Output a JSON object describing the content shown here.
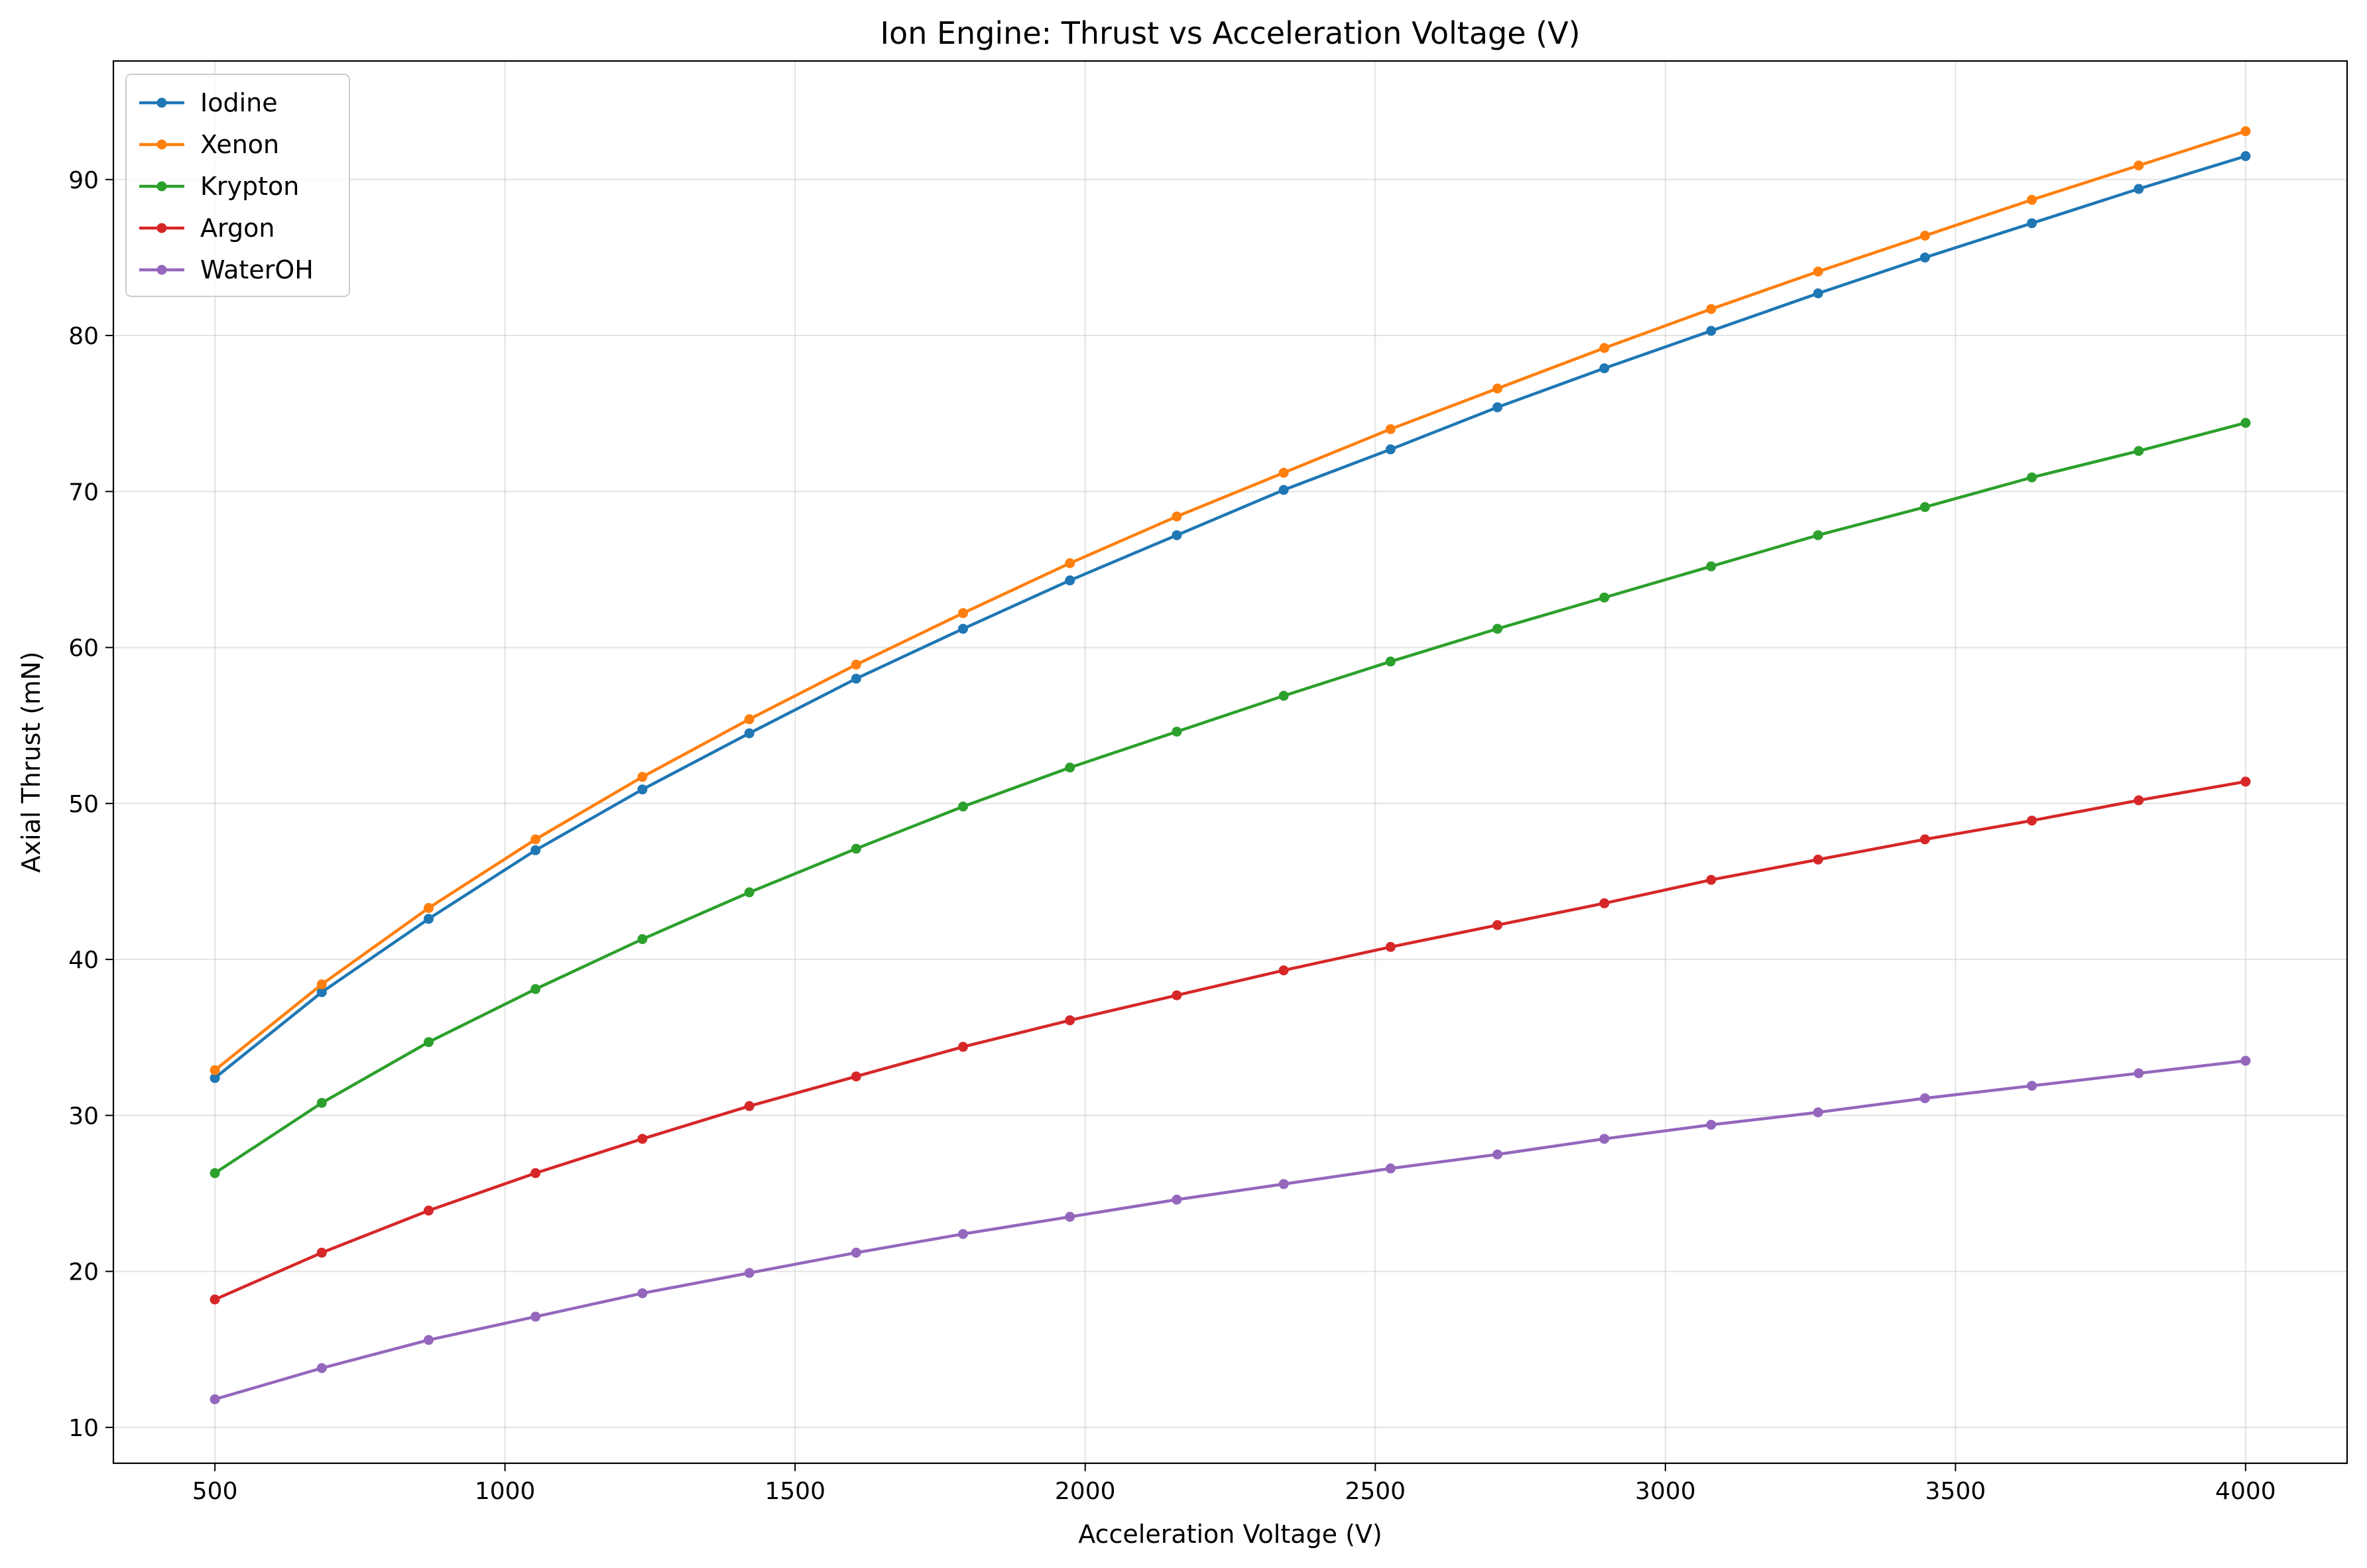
{
  "chart_data": {
    "type": "line",
    "title": "Ion Engine: Thrust vs Acceleration Voltage (V)",
    "xlabel": "Acceleration Voltage (V)",
    "ylabel": "Axial Thrust (mN)",
    "xlim": [
      325,
      4175
    ],
    "ylim": [
      7.7,
      97.6
    ],
    "xticks": [
      500,
      1000,
      1500,
      2000,
      2500,
      3000,
      3500,
      4000
    ],
    "yticks": [
      10,
      20,
      30,
      40,
      50,
      60,
      70,
      80,
      90
    ],
    "grid": true,
    "legend_position": "top-left",
    "x": [
      500,
      684.2,
      868.4,
      1052.6,
      1236.8,
      1421.1,
      1605.3,
      1789.5,
      1973.7,
      2157.9,
      2342.1,
      2526.3,
      2710.5,
      2894.7,
      3078.9,
      3263.2,
      3447.4,
      3631.6,
      3815.8,
      4000
    ],
    "series": [
      {
        "name": "Iodine",
        "color": "#1f77b4",
        "values": [
          32.4,
          37.9,
          42.6,
          47.0,
          50.9,
          54.5,
          58.0,
          61.2,
          64.3,
          67.2,
          70.1,
          72.7,
          75.4,
          77.9,
          80.3,
          82.7,
          85.0,
          87.2,
          89.4,
          91.5
        ]
      },
      {
        "name": "Xenon",
        "color": "#ff7f0e",
        "values": [
          32.9,
          38.4,
          43.3,
          47.7,
          51.7,
          55.4,
          58.9,
          62.2,
          65.4,
          68.4,
          71.2,
          74.0,
          76.6,
          79.2,
          81.7,
          84.1,
          86.4,
          88.7,
          90.9,
          93.1
        ]
      },
      {
        "name": "Krypton",
        "color": "#2ca02c",
        "values": [
          26.3,
          30.8,
          34.7,
          38.1,
          41.3,
          44.3,
          47.1,
          49.8,
          52.3,
          54.6,
          56.9,
          59.1,
          61.2,
          63.2,
          65.2,
          67.2,
          69.0,
          70.9,
          72.6,
          74.4
        ]
      },
      {
        "name": "Argon",
        "color": "#d62728",
        "values": [
          18.2,
          21.2,
          23.9,
          26.3,
          28.5,
          30.6,
          32.5,
          34.4,
          36.1,
          37.7,
          39.3,
          40.8,
          42.2,
          43.6,
          45.1,
          46.4,
          47.7,
          48.9,
          50.2,
          51.4
        ]
      },
      {
        "name": "WaterOH",
        "color": "#9467bd",
        "values": [
          11.8,
          13.8,
          15.6,
          17.1,
          18.6,
          19.9,
          21.2,
          22.4,
          23.5,
          24.6,
          25.6,
          26.6,
          27.5,
          28.5,
          29.4,
          30.2,
          31.1,
          31.9,
          32.7,
          33.5
        ]
      }
    ]
  }
}
